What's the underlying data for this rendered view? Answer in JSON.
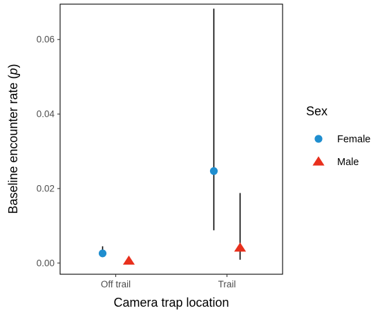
{
  "chart_data": {
    "type": "scatter",
    "subtype": "point-range",
    "title": "",
    "xlabel": "Camera trap location",
    "ylabel_prefix": "Baseline encounter rate (",
    "ylabel_symbol": "p",
    "ylabel_suffix": ")",
    "categories": [
      "Off trail",
      "Trail"
    ],
    "ylim": [
      -0.003,
      0.0695
    ],
    "yticks": [
      0.0,
      0.02,
      0.04,
      0.06
    ],
    "ytick_labels": [
      "0.00",
      "0.02",
      "0.04",
      "0.06"
    ],
    "grid": false,
    "legend": {
      "title": "Sex",
      "position": "right"
    },
    "series": [
      {
        "name": "Female",
        "marker": "circle",
        "color": "#1f8ecf",
        "points": [
          {
            "category": "Off trail",
            "y": 0.0026,
            "low": 0.0016,
            "high": 0.0045
          },
          {
            "category": "Trail",
            "y": 0.0247,
            "low": 0.0088,
            "high": 0.0683
          }
        ]
      },
      {
        "name": "Male",
        "marker": "triangle",
        "color": "#e8301d",
        "points": [
          {
            "category": "Off trail",
            "y": 0.0006,
            "low": 0.0002,
            "high": 0.0012
          },
          {
            "category": "Trail",
            "y": 0.0041,
            "low": 0.0009,
            "high": 0.0188
          }
        ]
      }
    ]
  }
}
